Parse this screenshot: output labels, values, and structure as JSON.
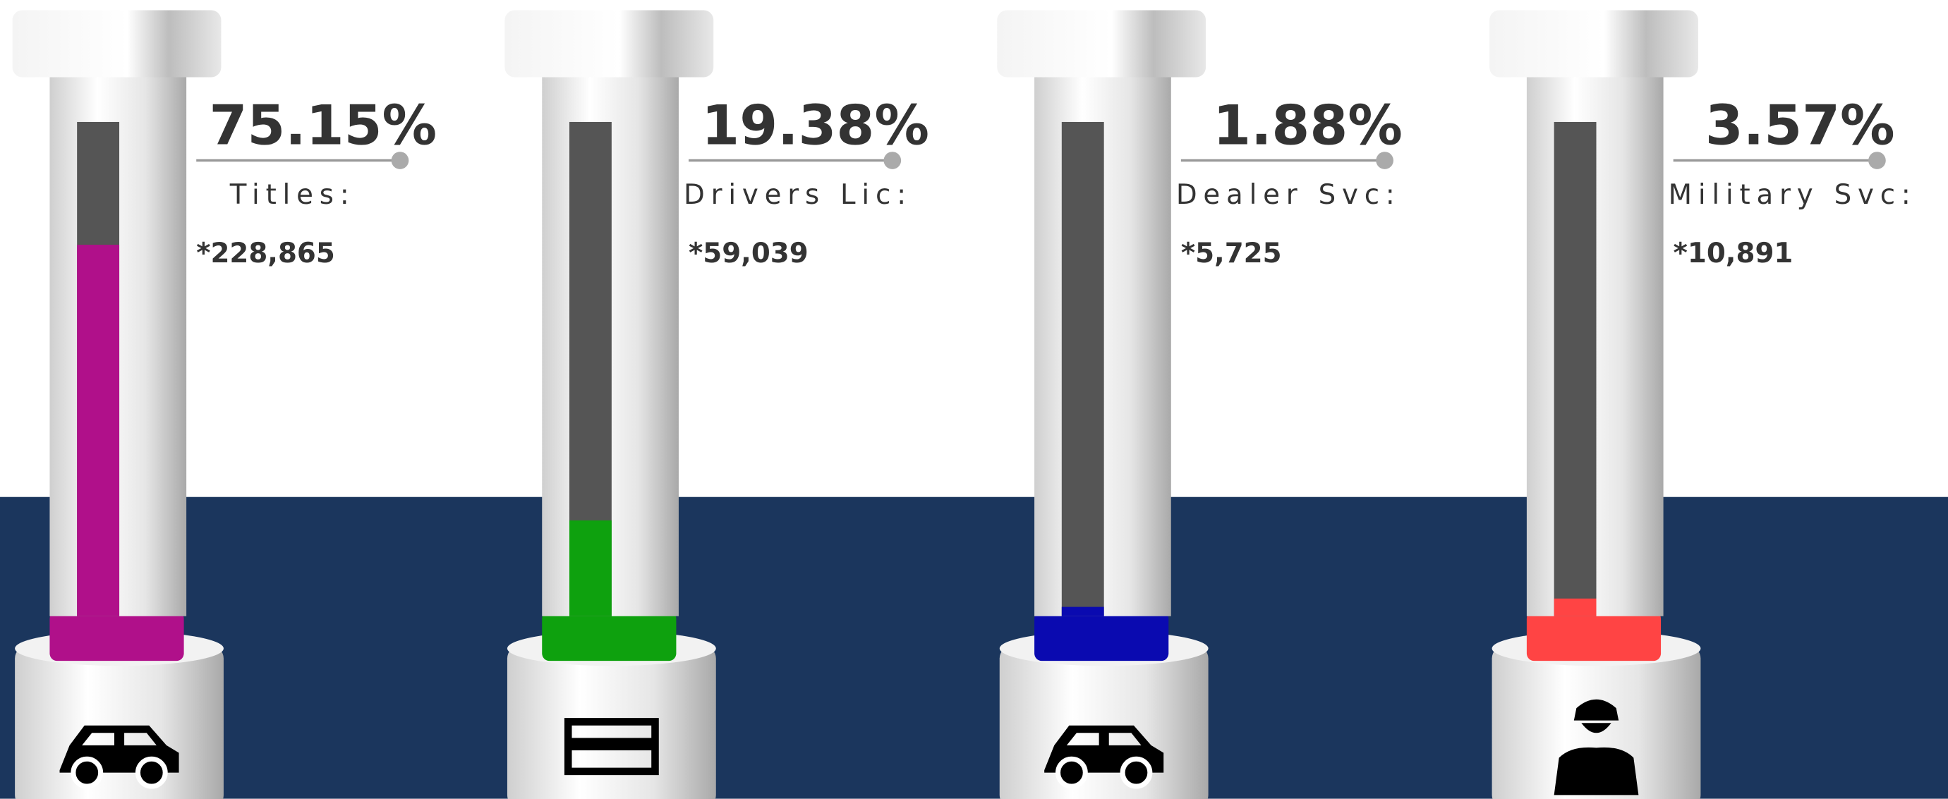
{
  "chart_data": {
    "type": "tube",
    "categories": [
      "Titles:",
      "Drivers Lic:",
      "Dealer Svc:",
      "Military Svc:"
    ],
    "values": [
      75.15,
      19.38,
      1.88,
      3.57
    ],
    "value_labels": [
      "75.15%",
      "19.38%",
      "1.88%",
      "3.57%"
    ],
    "count_labels": [
      "*228,865",
      "*59,039",
      "*5,725",
      "*10,891"
    ],
    "colors": [
      "#b0108a",
      "#0ea10e",
      "#0a0ab0",
      "#ff4444"
    ],
    "ylim": [
      0,
      100
    ]
  }
}
